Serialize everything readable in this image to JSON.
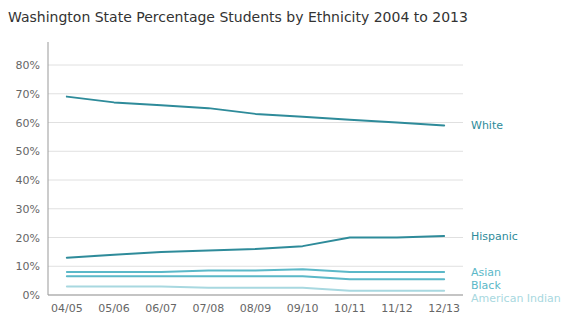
{
  "chart_data": {
    "type": "line",
    "title": "Washington State Percentage Students by Ethnicity 2004 to 2013",
    "categories": [
      "04/05",
      "05/06",
      "06/07",
      "07/08",
      "08/09",
      "09/10",
      "10/11",
      "11/12",
      "12/13"
    ],
    "series": [
      {
        "name": "White",
        "color": "#2E8B9A",
        "values": [
          0.69,
          0.67,
          0.66,
          0.65,
          0.63,
          0.62,
          0.61,
          0.6,
          0.59
        ]
      },
      {
        "name": "Hispanic",
        "color": "#2E8B9A",
        "values": [
          0.13,
          0.14,
          0.15,
          0.155,
          0.16,
          0.17,
          0.2,
          0.2,
          0.205
        ]
      },
      {
        "name": "Asian",
        "color": "#5BB8C8",
        "values": [
          0.08,
          0.08,
          0.08,
          0.085,
          0.085,
          0.09,
          0.08,
          0.08,
          0.08
        ]
      },
      {
        "name": "Black",
        "color": "#5BB8C8",
        "values": [
          0.065,
          0.065,
          0.065,
          0.065,
          0.065,
          0.065,
          0.055,
          0.055,
          0.055
        ]
      },
      {
        "name": "American Indian",
        "color": "#A8D8E0",
        "values": [
          0.03,
          0.03,
          0.03,
          0.025,
          0.025,
          0.025,
          0.015,
          0.015,
          0.015
        ]
      }
    ],
    "ylim": [
      0.0,
      0.88
    ],
    "yticks": [
      {
        "value": 0.0,
        "label": "0%"
      },
      {
        "value": 0.1,
        "label": "10%"
      },
      {
        "value": 0.2,
        "label": "20%"
      },
      {
        "value": 0.3,
        "label": "30%"
      },
      {
        "value": 0.4,
        "label": "40%"
      },
      {
        "value": 0.5,
        "label": "50%"
      },
      {
        "value": 0.6,
        "label": "60%"
      },
      {
        "value": 0.7,
        "label": "70%"
      },
      {
        "value": 0.8,
        "label": "80%"
      }
    ],
    "grid": true
  }
}
